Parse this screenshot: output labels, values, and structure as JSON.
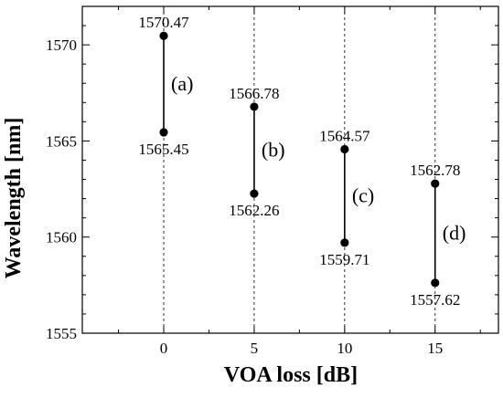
{
  "chart_data": {
    "type": "scatter",
    "title": "",
    "xlabel": "VOA loss [dB]",
    "ylabel": "Wavelength [nm]",
    "xlim": [
      -4.5,
      18.5
    ],
    "ylim": [
      1555,
      1572
    ],
    "x_ticks": [
      0,
      5,
      10,
      15
    ],
    "y_ticks": [
      1555,
      1560,
      1565,
      1570
    ],
    "grid": "vertical dashed lines at x ticks",
    "groups": [
      {
        "label": "(a)",
        "x": 0,
        "upper": 1570.47,
        "lower": 1565.45,
        "upper_label": "1570.47",
        "lower_label": "1565.45"
      },
      {
        "label": "(b)",
        "x": 5,
        "upper": 1566.78,
        "lower": 1562.26,
        "upper_label": "1566.78",
        "lower_label": "1562.26"
      },
      {
        "label": "(c)",
        "x": 10,
        "upper": 1564.57,
        "lower": 1559.71,
        "upper_label": "1564.57",
        "lower_label": "1559.71"
      },
      {
        "label": "(d)",
        "x": 15,
        "upper": 1562.78,
        "lower": 1557.62,
        "upper_label": "1562.78",
        "lower_label": "1557.62"
      }
    ]
  }
}
